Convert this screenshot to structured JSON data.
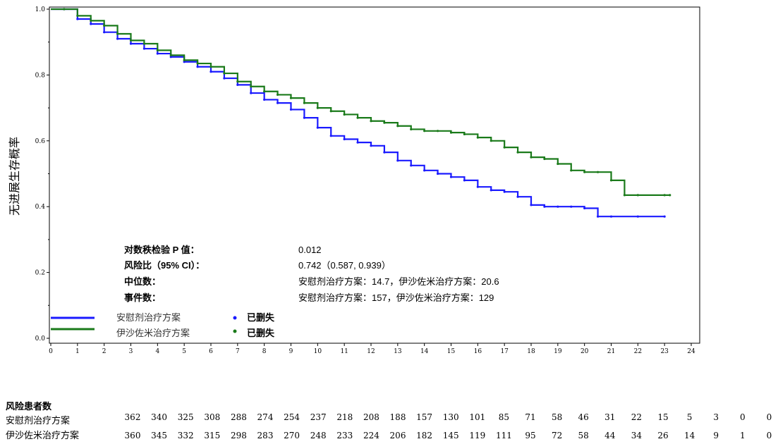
{
  "chart_data": {
    "type": "line",
    "subtype": "kaplan-meier",
    "ylabel": "无进展生存概率",
    "xlabel": "",
    "xlim": [
      0,
      24
    ],
    "ylim": [
      0,
      1.0
    ],
    "x_ticks": [
      "0",
      "1",
      "2",
      "3",
      "4",
      "5",
      "6",
      "7",
      "8",
      "9",
      "10",
      "11",
      "12",
      "13",
      "14",
      "15",
      "16",
      "17",
      "18",
      "19",
      "20",
      "21",
      "22",
      "23",
      "24"
    ],
    "y_ticks": [
      "0.0",
      "0.2",
      "0.4",
      "0.6",
      "0.8",
      "1.0"
    ],
    "grid": false,
    "series": [
      {
        "name": "安慰剂治疗方案",
        "color": "#1a1aff",
        "censor_label": "已删失",
        "x": [
          0,
          0.5,
          1.0,
          1.5,
          2.0,
          2.5,
          3.0,
          3.5,
          4.0,
          4.5,
          5.0,
          5.5,
          6.0,
          6.5,
          7.0,
          7.5,
          8.0,
          8.5,
          9.0,
          9.5,
          10.0,
          10.5,
          11.0,
          11.5,
          12.0,
          12.5,
          13.0,
          13.5,
          14.0,
          14.5,
          15.0,
          15.5,
          16.0,
          16.5,
          17.0,
          17.5,
          18.0,
          18.5,
          19.0,
          19.5,
          20.0,
          20.5,
          21.0,
          22.0,
          23.0
        ],
        "y": [
          1.0,
          1.0,
          0.97,
          0.955,
          0.93,
          0.91,
          0.895,
          0.88,
          0.865,
          0.855,
          0.84,
          0.825,
          0.81,
          0.79,
          0.77,
          0.745,
          0.725,
          0.715,
          0.695,
          0.67,
          0.64,
          0.615,
          0.605,
          0.595,
          0.585,
          0.565,
          0.54,
          0.525,
          0.51,
          0.5,
          0.49,
          0.48,
          0.46,
          0.45,
          0.445,
          0.43,
          0.405,
          0.4,
          0.4,
          0.4,
          0.395,
          0.37,
          0.37,
          0.37,
          0.37
        ]
      },
      {
        "name": "伊沙佐米治疗方案",
        "color": "#1a7a1a",
        "censor_label": "已删失",
        "x": [
          0,
          0.5,
          1.0,
          1.5,
          2.0,
          2.5,
          3.0,
          3.5,
          4.0,
          4.5,
          5.0,
          5.5,
          6.0,
          6.5,
          7.0,
          7.5,
          8.0,
          8.5,
          9.0,
          9.5,
          10.0,
          10.5,
          11.0,
          11.5,
          12.0,
          12.5,
          13.0,
          13.5,
          14.0,
          14.5,
          15.0,
          15.5,
          16.0,
          16.5,
          17.0,
          17.5,
          18.0,
          18.5,
          19.0,
          19.5,
          20.0,
          20.5,
          21.0,
          21.5,
          22.0,
          23.0,
          23.2
        ],
        "y": [
          1.0,
          1.0,
          0.98,
          0.965,
          0.95,
          0.925,
          0.905,
          0.895,
          0.875,
          0.86,
          0.845,
          0.835,
          0.825,
          0.805,
          0.78,
          0.765,
          0.75,
          0.74,
          0.73,
          0.715,
          0.7,
          0.69,
          0.68,
          0.67,
          0.66,
          0.655,
          0.645,
          0.635,
          0.63,
          0.63,
          0.625,
          0.62,
          0.61,
          0.6,
          0.58,
          0.565,
          0.55,
          0.545,
          0.53,
          0.51,
          0.505,
          0.505,
          0.48,
          0.435,
          0.435,
          0.435,
          0.435
        ]
      }
    ]
  },
  "stats": [
    {
      "key": "对数秩检验 P 值：",
      "value": "0.012"
    },
    {
      "key": "风险比（95% CI）：",
      "value": "0.742（0.587, 0.939）"
    },
    {
      "key": "中位数：",
      "value": "安慰剂治疗方案：14.7，伊沙佐米治疗方案：20.6"
    },
    {
      "key": "事件数：",
      "value": "安慰剂治疗方案：157，伊沙佐米治疗方案：129"
    }
  ],
  "risk_table": {
    "title": "风险患者数",
    "rows": [
      {
        "label": "安慰剂治疗方案",
        "values": [
          "362",
          "340",
          "325",
          "308",
          "288",
          "274",
          "254",
          "237",
          "218",
          "208",
          "188",
          "157",
          "130",
          "101",
          "85",
          "71",
          "58",
          "46",
          "31",
          "22",
          "15",
          "5",
          "3",
          "0",
          "0"
        ]
      },
      {
        "label": "伊沙佐米治疗方案",
        "values": [
          "360",
          "345",
          "332",
          "315",
          "298",
          "283",
          "270",
          "248",
          "233",
          "224",
          "206",
          "182",
          "145",
          "119",
          "111",
          "95",
          "72",
          "58",
          "44",
          "34",
          "26",
          "14",
          "9",
          "1",
          "0"
        ]
      }
    ]
  }
}
